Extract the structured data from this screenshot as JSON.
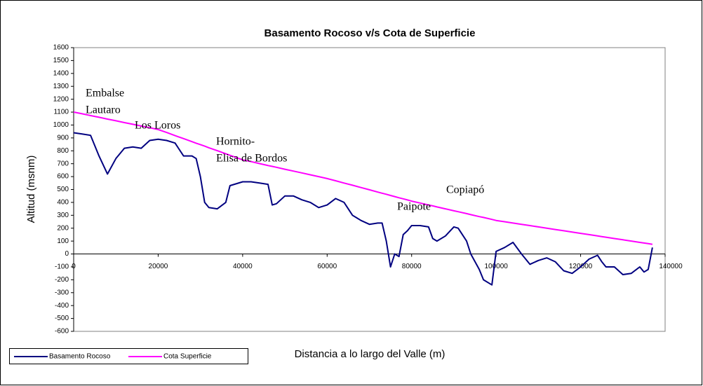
{
  "chart_data": {
    "type": "line",
    "title": "Basamento Rocoso v/s Cota de Superficie",
    "x_label": "Distancia a lo largo del Valle (m)",
    "y_label": "Altitud (msnm)",
    "annotations": [
      [
        "Embalse",
        "Lautaro"
      ],
      [
        "Los Loros"
      ],
      [
        "Hornito-",
        "Elisa de Bordos"
      ],
      [
        "Paipote"
      ],
      [
        "Copiapó"
      ]
    ],
    "x": [
      0,
      2000,
      4000,
      6000,
      8000,
      10000,
      12000,
      14000,
      16000,
      18000,
      20000,
      22000,
      24000,
      26000,
      28000,
      29000,
      30000,
      31000,
      32000,
      34000,
      36000,
      37000,
      40000,
      42000,
      44000,
      46000,
      47000,
      48000,
      50000,
      52000,
      54000,
      56000,
      58000,
      60000,
      62000,
      64000,
      66000,
      68000,
      70000,
      72000,
      73000,
      74000,
      75000,
      76000,
      77000,
      78000,
      79000,
      80000,
      82000,
      84000,
      85000,
      86000,
      88000,
      90000,
      91000,
      93000,
      94000,
      96000,
      97000,
      99000,
      100000,
      102000,
      104000,
      106000,
      108000,
      110000,
      112000,
      114000,
      116000,
      118000,
      120000,
      122000,
      124000,
      125000,
      126000,
      128000,
      130000,
      132000,
      134000,
      135000,
      136000,
      137000
    ],
    "series": [
      {
        "name": "Basamento Rocoso",
        "color": "#000080",
        "values": [
          940,
          930,
          920,
          760,
          620,
          740,
          820,
          830,
          820,
          880,
          890,
          880,
          860,
          760,
          760,
          740,
          600,
          400,
          360,
          350,
          400,
          530,
          560,
          560,
          550,
          540,
          380,
          390,
          450,
          450,
          420,
          400,
          360,
          380,
          430,
          400,
          300,
          260,
          230,
          240,
          240,
          100,
          -100,
          0,
          -20,
          150,
          180,
          220,
          220,
          210,
          120,
          100,
          140,
          210,
          200,
          100,
          0,
          -120,
          -200,
          -240,
          20,
          50,
          90,
          0,
          -80,
          -50,
          -30,
          -60,
          -130,
          -150,
          -100,
          -40,
          -10,
          -60,
          -100,
          -100,
          -160,
          -150,
          -100,
          -140,
          -120,
          50
        ]
      },
      {
        "name": "Cota Superficie",
        "color": "#ff00ff",
        "values": [
          1100,
          1087,
          1073,
          1060,
          1046,
          1033,
          1019,
          1006,
          992,
          979,
          965,
          942,
          918,
          895,
          871,
          859,
          848,
          836,
          824,
          801,
          777,
          765,
          730,
          716,
          701,
          686,
          679,
          672,
          657,
          643,
          629,
          614,
          600,
          585,
          568,
          550,
          533,
          515,
          498,
          480,
          471,
          463,
          454,
          445,
          436,
          428,
          419,
          410,
          395,
          380,
          373,
          365,
          350,
          335,
          328,
          313,
          305,
          290,
          283,
          268,
          260,
          250,
          240,
          230,
          220,
          210,
          200,
          190,
          180,
          170,
          160,
          150,
          140,
          135,
          130,
          120,
          110,
          100,
          90,
          85,
          80,
          75
        ]
      }
    ],
    "xlim": [
      0,
      140000
    ],
    "xticks": [
      0,
      20000,
      40000,
      60000,
      80000,
      100000,
      120000,
      140000
    ],
    "ylim": [
      -600,
      1600
    ],
    "yticks": [
      -600,
      -500,
      -400,
      -300,
      -200,
      -100,
      0,
      100,
      200,
      300,
      400,
      500,
      600,
      700,
      800,
      900,
      1000,
      1100,
      1200,
      1300,
      1400,
      1500,
      1600
    ],
    "legend": "bottom-left"
  }
}
